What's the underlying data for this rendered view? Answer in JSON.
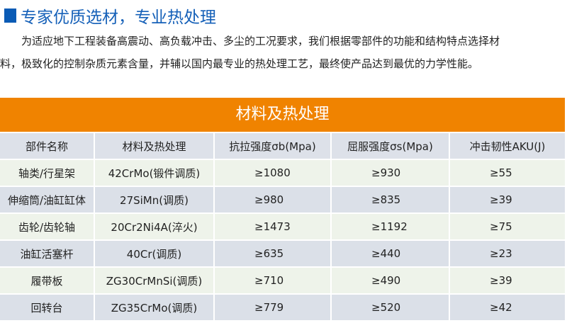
{
  "heading": "专家优质选材，专业热处理",
  "paragraph": {
    "line1": "为适应地下工程装备高震动、高负载冲击、多尘的工况要求，我们根据零部件的功能和结构特点选择材",
    "line2": "料，极致化的控制杂质元素含量，并辅以国内最专业的热处理工艺，最终使产品达到最优的力学性能。"
  },
  "colors": {
    "accent": "#1560b8",
    "banner": "#f08300"
  },
  "table": {
    "title": "材料及热处理",
    "headers": [
      "部件名称",
      "材料及热处理",
      "抗拉强度σb(Mpa)",
      "屈服强度σs(Mpa)",
      "冲击韧性AKU(J)"
    ],
    "rows": [
      [
        "轴类/行星架",
        "42CrMo(锻件调质)",
        "≥1080",
        "≥930",
        "≥55"
      ],
      [
        "伸缩筒/油缸缸体",
        "27SiMn(调质)",
        "≥980",
        "≥835",
        "≥39"
      ],
      [
        "齿轮/齿轮轴",
        "20Cr2Ni4A(淬火)",
        "≥1473",
        "≥1192",
        "≥75"
      ],
      [
        "油缸活塞杆",
        "40Cr(调质)",
        "≥635",
        "≥440",
        "≥23"
      ],
      [
        "履带板",
        "ZG30CrMnSi(调质)",
        "≥710",
        "≥490",
        "≥39"
      ],
      [
        "回转台",
        "ZG35CrMo(调质)",
        "≥779",
        "≥520",
        "≥42"
      ]
    ]
  }
}
